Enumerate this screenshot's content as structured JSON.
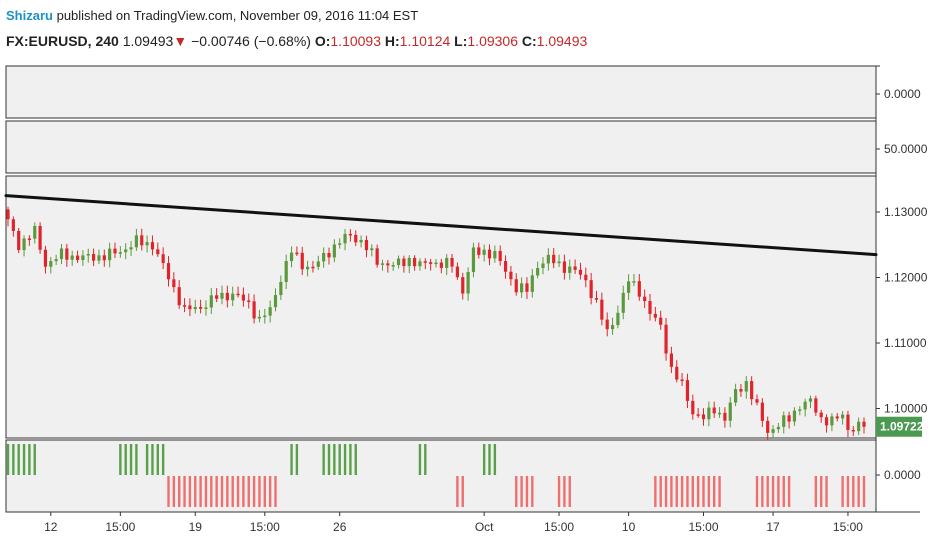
{
  "header": {
    "author": "Shizaru",
    "published_text": "published on TradingView.com, November 09, 2016 11:04 EST",
    "symbol": "FX:EURUSD, 240",
    "last_price": "1.09493",
    "change_arrow": "▼",
    "change": "−0.00746 (−0.68%)",
    "open_label": "O:",
    "open": "1.10093",
    "high_label": "H:",
    "high": "1.10124",
    "low_label": "L:",
    "low": "1.09306",
    "close_label": "C:",
    "close": "1.09493"
  },
  "panes": {
    "pane1_scale": "0.0000",
    "pane2_scale": "50.0000",
    "indicator_scale": "0.0000"
  },
  "colors": {
    "up": "#5b9a3c",
    "down": "#e0242b",
    "trendline": "#111111",
    "indicator_up": "#5aa04a",
    "indicator_down": "#ef6f6f",
    "price_badge": "#4c9a52"
  },
  "chart_data": {
    "type": "candlestick",
    "symbol": "FX:EURUSD",
    "interval": "240",
    "y_ticks": [
      1.13,
      1.12,
      1.11,
      1.1
    ],
    "y_tick_labels": [
      "1.13000",
      "1.12000",
      "1.11000",
      "1.10000"
    ],
    "ylim": [
      1.0955,
      1.1355
    ],
    "last_price_label": "1.09722",
    "last_price_value": 1.09722,
    "x_tick_labels": [
      "12",
      "15:00",
      "19",
      "15:00",
      "26",
      "Oct",
      "15:00",
      "10",
      "15:00",
      "17",
      "15:00"
    ],
    "x_tick_bars": [
      8,
      21,
      35,
      48,
      62,
      89,
      103,
      116,
      130,
      143,
      157
    ],
    "trendline": {
      "from": [
        0,
        1.1325
      ],
      "to": [
        160,
        1.1235
      ]
    },
    "close_anchors": [
      [
        0,
        1.1285
      ],
      [
        2,
        1.125
      ],
      [
        5,
        1.127
      ],
      [
        7,
        1.122
      ],
      [
        10,
        1.1235
      ],
      [
        14,
        1.123
      ],
      [
        18,
        1.1233
      ],
      [
        21,
        1.124
      ],
      [
        24,
        1.1255
      ],
      [
        27,
        1.125
      ],
      [
        30,
        1.12
      ],
      [
        33,
        1.115
      ],
      [
        36,
        1.1155
      ],
      [
        39,
        1.117
      ],
      [
        42,
        1.1175
      ],
      [
        45,
        1.116
      ],
      [
        47,
        1.1135
      ],
      [
        49,
        1.115
      ],
      [
        51,
        1.12
      ],
      [
        53,
        1.124
      ],
      [
        55,
        1.122
      ],
      [
        57,
        1.1215
      ],
      [
        60,
        1.124
      ],
      [
        62,
        1.1255
      ],
      [
        64,
        1.1265
      ],
      [
        66,
        1.1255
      ],
      [
        69,
        1.1225
      ],
      [
        72,
        1.1218
      ],
      [
        75,
        1.1228
      ],
      [
        77,
        1.1218
      ],
      [
        79,
        1.1225
      ],
      [
        81,
        1.122
      ],
      [
        83,
        1.122
      ],
      [
        85,
        1.118
      ],
      [
        87,
        1.1238
      ],
      [
        89,
        1.124
      ],
      [
        91,
        1.1235
      ],
      [
        93,
        1.121
      ],
      [
        95,
        1.1185
      ],
      [
        97,
        1.118
      ],
      [
        99,
        1.122
      ],
      [
        101,
        1.1228
      ],
      [
        103,
        1.122
      ],
      [
        106,
        1.121
      ],
      [
        108,
        1.1195
      ],
      [
        110,
        1.116
      ],
      [
        112,
        1.1115
      ],
      [
        114,
        1.115
      ],
      [
        116,
        1.1195
      ],
      [
        118,
        1.118
      ],
      [
        120,
        1.1145
      ],
      [
        122,
        1.1125
      ],
      [
        124,
        1.106
      ],
      [
        126,
        1.1035
      ],
      [
        128,
        1.0995
      ],
      [
        130,
        1.0985
      ],
      [
        132,
        1.1
      ],
      [
        134,
        1.0985
      ],
      [
        136,
        1.1025
      ],
      [
        138,
        1.104
      ],
      [
        140,
        1.1
      ],
      [
        142,
        1.0965
      ],
      [
        144,
        1.0975
      ],
      [
        146,
        1.0985
      ],
      [
        148,
        1.1005
      ],
      [
        150,
        1.101
      ],
      [
        152,
        1.0985
      ],
      [
        154,
        1.098
      ],
      [
        156,
        1.099
      ],
      [
        157,
        1.097
      ],
      [
        160,
        1.0972
      ]
    ],
    "indicator_up_bars": [
      0,
      1,
      2,
      3,
      4,
      5,
      21,
      22,
      23,
      24,
      26,
      27,
      28,
      29,
      53,
      54,
      59,
      60,
      61,
      62,
      63,
      64,
      65,
      77,
      78,
      89,
      90,
      91
    ],
    "indicator_down_bars": [
      30,
      31,
      32,
      33,
      34,
      35,
      36,
      37,
      38,
      39,
      40,
      41,
      42,
      43,
      44,
      45,
      46,
      47,
      48,
      49,
      50,
      84,
      85,
      95,
      96,
      97,
      98,
      103,
      104,
      105,
      121,
      122,
      123,
      124,
      125,
      126,
      127,
      128,
      129,
      130,
      131,
      132,
      133,
      140,
      141,
      142,
      143,
      144,
      145,
      146,
      151,
      152,
      153,
      156,
      157,
      158,
      159,
      160
    ]
  }
}
